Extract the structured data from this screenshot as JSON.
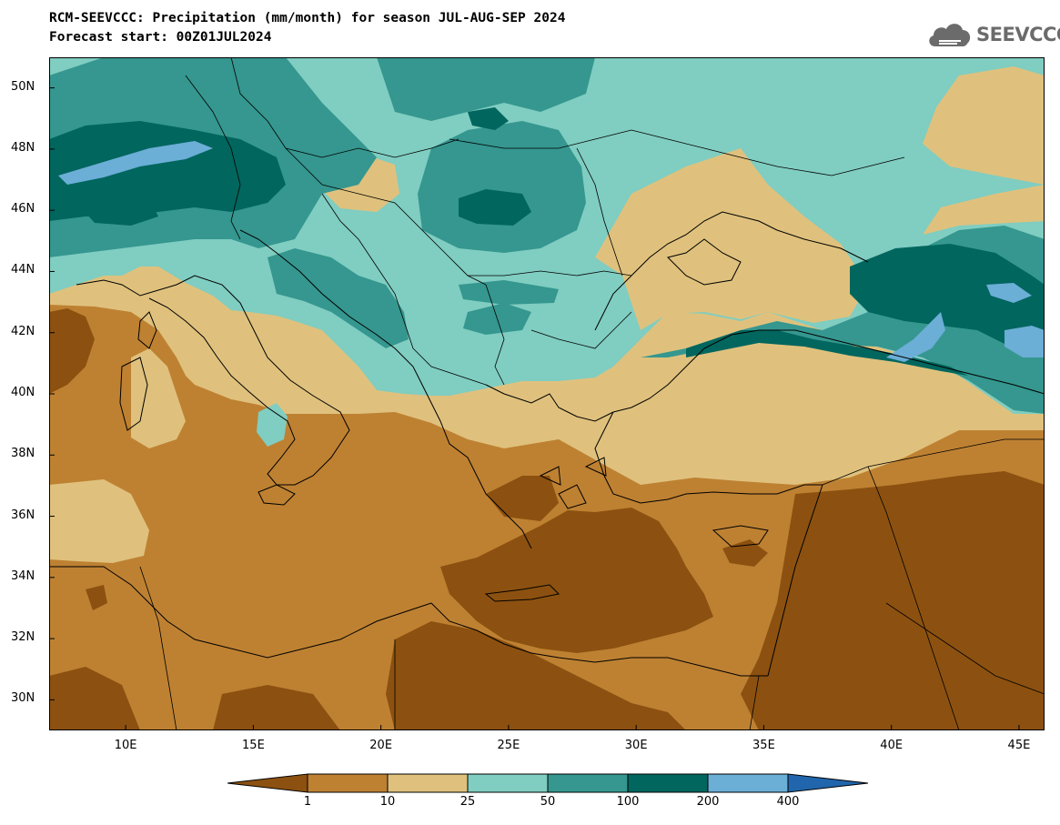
{
  "header": {
    "title": "RCM-SEEVCCC: Precipitation (mm/month) for season JUL-AUG-SEP 2024",
    "subtitle": "Forecast start: 00Z01JUL2024"
  },
  "logo": {
    "text": "SEEVCCC",
    "icon": "cloud-icon"
  },
  "map": {
    "lon_range": [
      7,
      46
    ],
    "lat_range": [
      29,
      51
    ],
    "lat_ticks": [
      {
        "value": 50,
        "label": "50N"
      },
      {
        "value": 48,
        "label": "48N"
      },
      {
        "value": 46,
        "label": "46N"
      },
      {
        "value": 44,
        "label": "44N"
      },
      {
        "value": 42,
        "label": "42N"
      },
      {
        "value": 40,
        "label": "40N"
      },
      {
        "value": 38,
        "label": "38N"
      },
      {
        "value": 36,
        "label": "36N"
      },
      {
        "value": 34,
        "label": "34N"
      },
      {
        "value": 32,
        "label": "32N"
      },
      {
        "value": 30,
        "label": "30N"
      }
    ],
    "lon_ticks": [
      {
        "value": 10,
        "label": "10E"
      },
      {
        "value": 15,
        "label": "15E"
      },
      {
        "value": 20,
        "label": "20E"
      },
      {
        "value": 25,
        "label": "25E"
      },
      {
        "value": 30,
        "label": "30E"
      },
      {
        "value": 35,
        "label": "35E"
      },
      {
        "value": 40,
        "label": "40E"
      },
      {
        "value": 45,
        "label": "45E"
      }
    ]
  },
  "colorbar": {
    "levels": [
      "1",
      "10",
      "25",
      "50",
      "100",
      "200",
      "400"
    ],
    "colors": [
      "#8c5110",
      "#be8132",
      "#dfc17d",
      "#80cdc1",
      "#35978f",
      "#01665e",
      "#6baed6",
      "#2166ac"
    ]
  }
}
